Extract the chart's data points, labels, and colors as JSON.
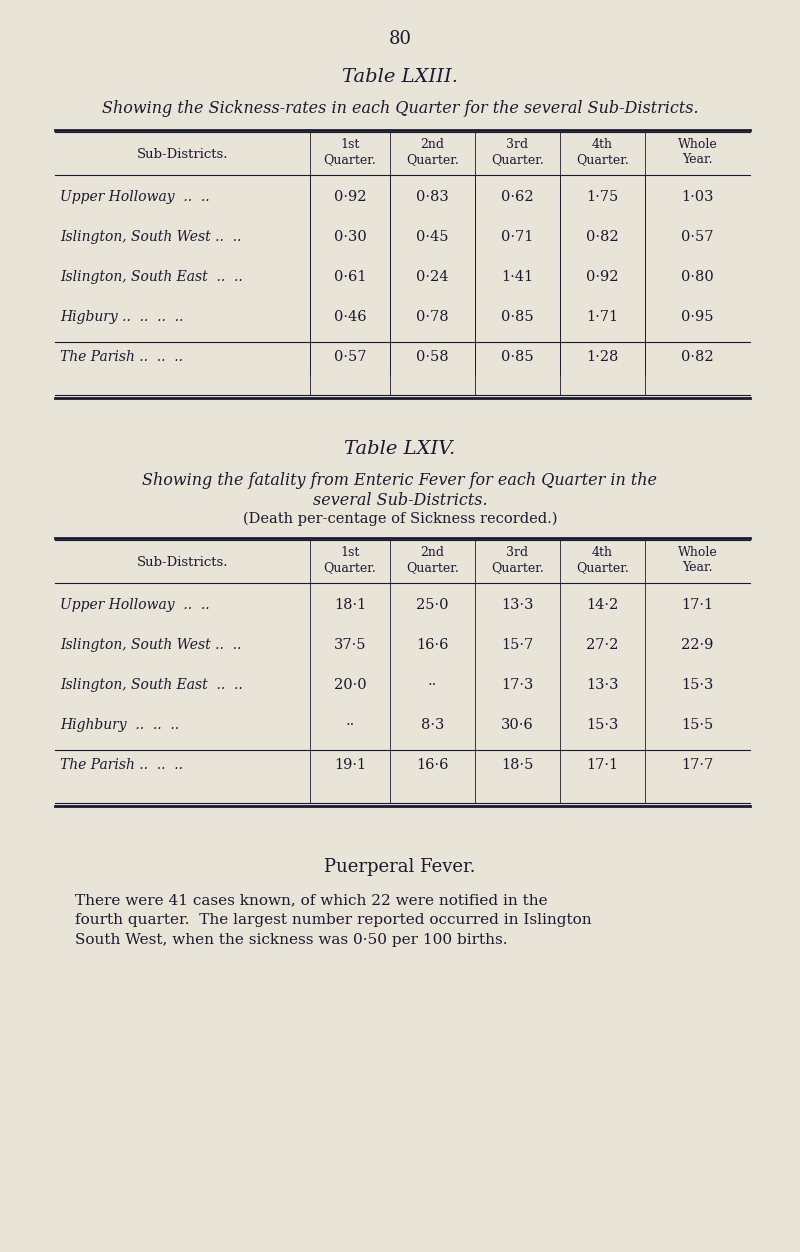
{
  "bg_color": "#e8e4d8",
  "page_number": "80",
  "table1": {
    "title": "Table LXIII.",
    "subtitle": "Showing the Sickness-rates in each Quarter for the several Sub-Districts.",
    "col_headers": [
      "Sub-Districts.",
      "1st\nQuarter.",
      "2nd\nQuarter.",
      "3rd\nQuarter.",
      "4th\nQuarter.",
      "Whole\nYear."
    ],
    "rows": [
      [
        "Upper Holloway  ..  ..",
        "0·92",
        "0·83",
        "0·62",
        "1·75",
        "1·03"
      ],
      [
        "Islington, South West ..  ..",
        "0·30",
        "0·45",
        "0·71",
        "0·82",
        "0·57"
      ],
      [
        "Islington, South East  ..  ..",
        "0·61",
        "0·24",
        "1·41",
        "0·92",
        "0·80"
      ],
      [
        "Higbury ..  ..  ..  ..",
        "0·46",
        "0·78",
        "0·85",
        "1·71",
        "0·95"
      ],
      [
        "The Parish ..  ..  ..",
        "0·57",
        "0·58",
        "0·85",
        "1·28",
        "0·82"
      ]
    ],
    "parish_row_index": 4
  },
  "table2": {
    "title": "Table LXIV.",
    "subtitle1": "Showing the fatality from Enteric Fever for each Quarter in the",
    "subtitle2": "several Sub-Districts.",
    "subtitle3": "(Death per-centage of Sickness recorded.)",
    "col_headers": [
      "Sub-Districts.",
      "1st\nQuarter.",
      "2nd\nQuarter.",
      "3rd\nQuarter.",
      "4th\nQuarter.",
      "Whole\nYear."
    ],
    "rows": [
      [
        "Upper Holloway  ..  ..",
        "18·1",
        "25·0",
        "13·3",
        "14·2",
        "17·1"
      ],
      [
        "Islington, South West ..  ..",
        "37·5",
        "16·6",
        "15·7",
        "27·2",
        "22·9"
      ],
      [
        "Islington, South East  ..  ..",
        "20·0",
        "··",
        "17·3",
        "13·3",
        "15·3"
      ],
      [
        "Highbury  ..  ..  ..",
        "··",
        "8·3",
        "30·6",
        "15·3",
        "15·5"
      ],
      [
        "The Parish ..  ..  ..",
        "19·1",
        "16·6",
        "18·5",
        "17·1",
        "17·7"
      ]
    ],
    "parish_row_index": 4
  },
  "footer_title": "Puerperal Fever.",
  "footer_text1": "There were 41 cases known, of which 22 were notified in the",
  "footer_text2": "fourth quarter.  The largest number reported occurred in Islington",
  "footer_text3": "South West, when the sickness was 0·50 per 100 births."
}
